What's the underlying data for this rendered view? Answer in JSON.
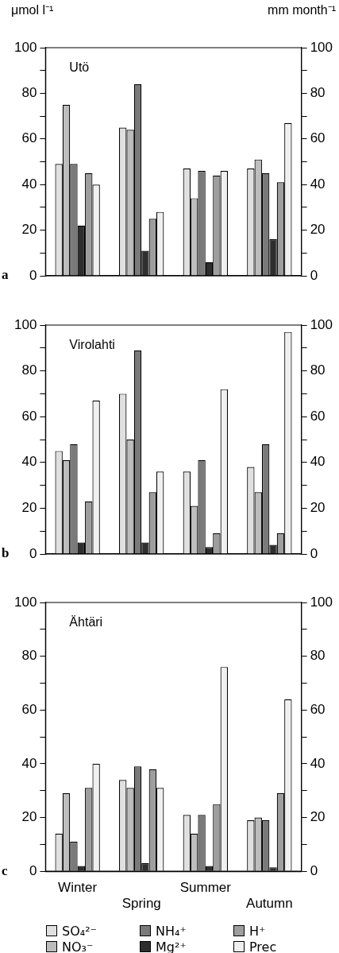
{
  "chart_data": [
    {
      "type": "bar",
      "title": "Utö",
      "ylabel": "μmol l⁻¹",
      "y2label": "mm month⁻¹",
      "annotations": [
        "a"
      ],
      "categories": [
        null,
        null,
        null,
        null
      ],
      "tick_labels": "y",
      "grid": false,
      "legend": false,
      "ylim": [
        0,
        100
      ],
      "yticks": [
        0,
        {
          "value": 10,
          "label": null
        },
        20,
        {
          "value": 30,
          "label": null
        },
        40,
        {
          "value": 50,
          "label": null
        },
        60,
        {
          "value": 70,
          "label": null
        },
        80,
        {
          "value": 90,
          "label": null
        },
        100
      ],
      "y2lim": [
        0,
        100
      ],
      "y2ticks": [
        0,
        {
          "value": 10,
          "label": null
        },
        20,
        {
          "value": 30,
          "label": null
        },
        40,
        {
          "value": 50,
          "label": null
        },
        60,
        {
          "value": 70,
          "label": null
        },
        80,
        {
          "value": 90,
          "label": null
        },
        100
      ],
      "series": [
        {
          "color": "#e0e0e0",
          "values": [
            49,
            65,
            47,
            47
          ]
        },
        {
          "color": "#bdbdbd",
          "values": [
            75,
            64,
            34,
            51
          ]
        },
        {
          "color": "#7a7a7a",
          "values": [
            49,
            84,
            46,
            45
          ]
        },
        {
          "color": "#2e2e2e",
          "values": [
            22,
            11,
            6,
            16
          ]
        },
        {
          "color": "#9e9e9e",
          "values": [
            45,
            25,
            44,
            41
          ]
        },
        {
          "color": "#f0f0f0",
          "values": [
            40,
            28,
            46,
            67
          ]
        }
      ]
    },
    {
      "type": "bar",
      "title": "Virolahti",
      "annotations": [
        "b"
      ],
      "categories": [
        null,
        null,
        null,
        null
      ],
      "tick_labels": "y",
      "grid": false,
      "legend": false,
      "ylim": [
        0,
        100
      ],
      "yticks": [
        0,
        {
          "value": 10,
          "label": null
        },
        20,
        {
          "value": 30,
          "label": null
        },
        40,
        {
          "value": 50,
          "label": null
        },
        60,
        {
          "value": 70,
          "label": null
        },
        80,
        {
          "value": 90,
          "label": null
        },
        100
      ],
      "y2lim": [
        0,
        100
      ],
      "y2ticks": [
        0,
        {
          "value": 10,
          "label": null
        },
        20,
        {
          "value": 30,
          "label": null
        },
        40,
        {
          "value": 50,
          "label": null
        },
        60,
        {
          "value": 70,
          "label": null
        },
        80,
        {
          "value": 90,
          "label": null
        },
        100
      ],
      "series": [
        {
          "color": "#e0e0e0",
          "values": [
            45,
            70,
            36,
            38
          ]
        },
        {
          "color": "#bdbdbd",
          "values": [
            41,
            50,
            21,
            27
          ]
        },
        {
          "color": "#7a7a7a",
          "values": [
            48,
            89,
            41,
            48
          ]
        },
        {
          "color": "#2e2e2e",
          "values": [
            5,
            5,
            3,
            4
          ]
        },
        {
          "color": "#9e9e9e",
          "values": [
            23,
            27,
            9,
            9
          ]
        },
        {
          "color": "#f0f0f0",
          "values": [
            67,
            36,
            72,
            97
          ]
        }
      ]
    },
    {
      "type": "bar",
      "title": "Ähtäri",
      "annotations": [
        "c"
      ],
      "categories": [
        "Winter",
        "Spring",
        "Summer",
        "Autumn"
      ],
      "grid": false,
      "legend": "bottom",
      "ylim": [
        0,
        100
      ],
      "yticks": [
        0,
        {
          "value": 10,
          "label": null
        },
        20,
        {
          "value": 30,
          "label": null
        },
        40,
        {
          "value": 50,
          "label": null
        },
        60,
        {
          "value": 70,
          "label": null
        },
        80,
        {
          "value": 90,
          "label": null
        },
        100
      ],
      "y2lim": [
        0,
        100
      ],
      "y2ticks": [
        0,
        {
          "value": 10,
          "label": null
        },
        20,
        {
          "value": 30,
          "label": null
        },
        40,
        {
          "value": 50,
          "label": null
        },
        60,
        {
          "value": 70,
          "label": null
        },
        80,
        {
          "value": 90,
          "label": null
        },
        100
      ],
      "series": [
        {
          "name": "SO₄²⁻",
          "color": "#e0e0e0",
          "values": [
            14,
            34,
            21,
            19
          ]
        },
        {
          "name": "NO₃⁻",
          "color": "#bdbdbd",
          "values": [
            29,
            31,
            14,
            20
          ]
        },
        {
          "name": "NH₄⁺",
          "color": "#7a7a7a",
          "values": [
            11,
            39,
            21,
            19
          ]
        },
        {
          "name": "Mg²⁺",
          "color": "#2e2e2e",
          "values": [
            2,
            3,
            2,
            1.5
          ]
        },
        {
          "name": "H⁺",
          "color": "#9e9e9e",
          "values": [
            31,
            38,
            25,
            29
          ]
        },
        {
          "name": "Prec",
          "color": "#f0f0f0",
          "values": [
            40,
            31,
            76,
            64
          ]
        }
      ]
    }
  ]
}
